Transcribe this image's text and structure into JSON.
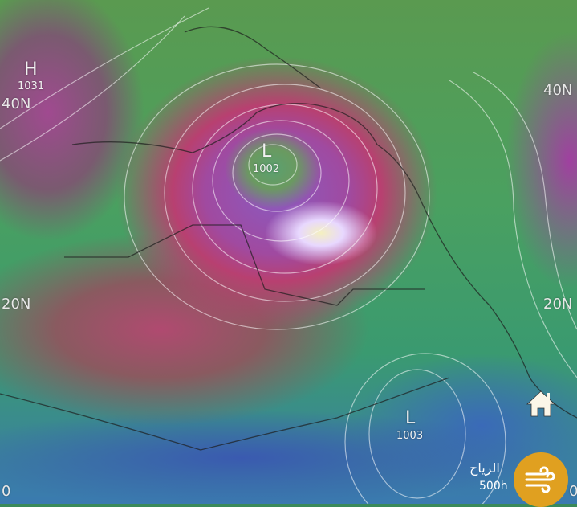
{
  "map": {
    "layer": "wind",
    "pressure_systems": [
      {
        "type": "H",
        "value": "1031"
      },
      {
        "type": "L",
        "value": "1002"
      },
      {
        "type": "L",
        "value": "1003"
      }
    ],
    "latitude_labels": {
      "left_40": "40N",
      "right_40": "40N",
      "left_20": "20N",
      "right_20": "20N",
      "left_0": "0",
      "right_0": "0"
    }
  },
  "controls": {
    "layer_name": "الرياح",
    "layer_level": "500h",
    "wind_button_icon": "wind-icon",
    "home_icon": "home-icon",
    "accent_color": "#e0a020"
  }
}
